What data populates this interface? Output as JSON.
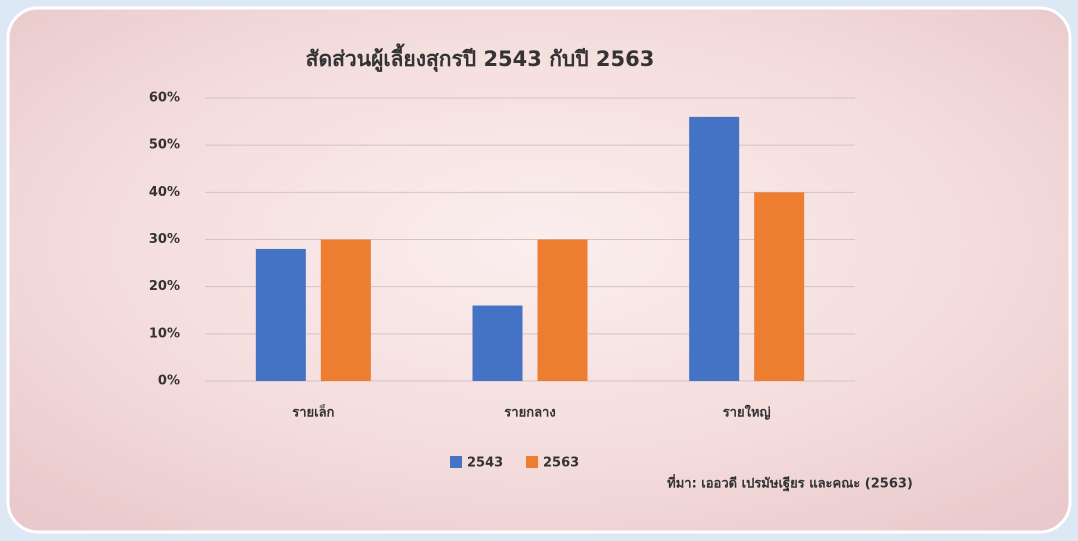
{
  "chart_data": {
    "type": "bar",
    "title": "สัดส่วนผู้เลี้ยงสุกรปี 2543 กับปี 2563",
    "categories": [
      "รายเล็ก",
      "รายกลาง",
      "รายใหญ่"
    ],
    "series": [
      {
        "name": "2543",
        "color": "#4472c4",
        "values": [
          28,
          16,
          56
        ]
      },
      {
        "name": "2563",
        "color": "#ed7d31",
        "values": [
          30,
          30,
          40
        ]
      }
    ],
    "ylim": [
      0,
      60
    ],
    "yticks": [
      {
        "value": 0,
        "label": "0%"
      },
      {
        "value": 10,
        "label": "10%"
      },
      {
        "value": 20,
        "label": "20%"
      },
      {
        "value": 30,
        "label": "30%"
      },
      {
        "value": 40,
        "label": "40%"
      },
      {
        "value": 50,
        "label": "50%"
      },
      {
        "value": 60,
        "label": "60%"
      }
    ],
    "grid": true,
    "source": "ที่มา: เออวดี เปรมัษเฐียร และคณะ (2563)"
  }
}
